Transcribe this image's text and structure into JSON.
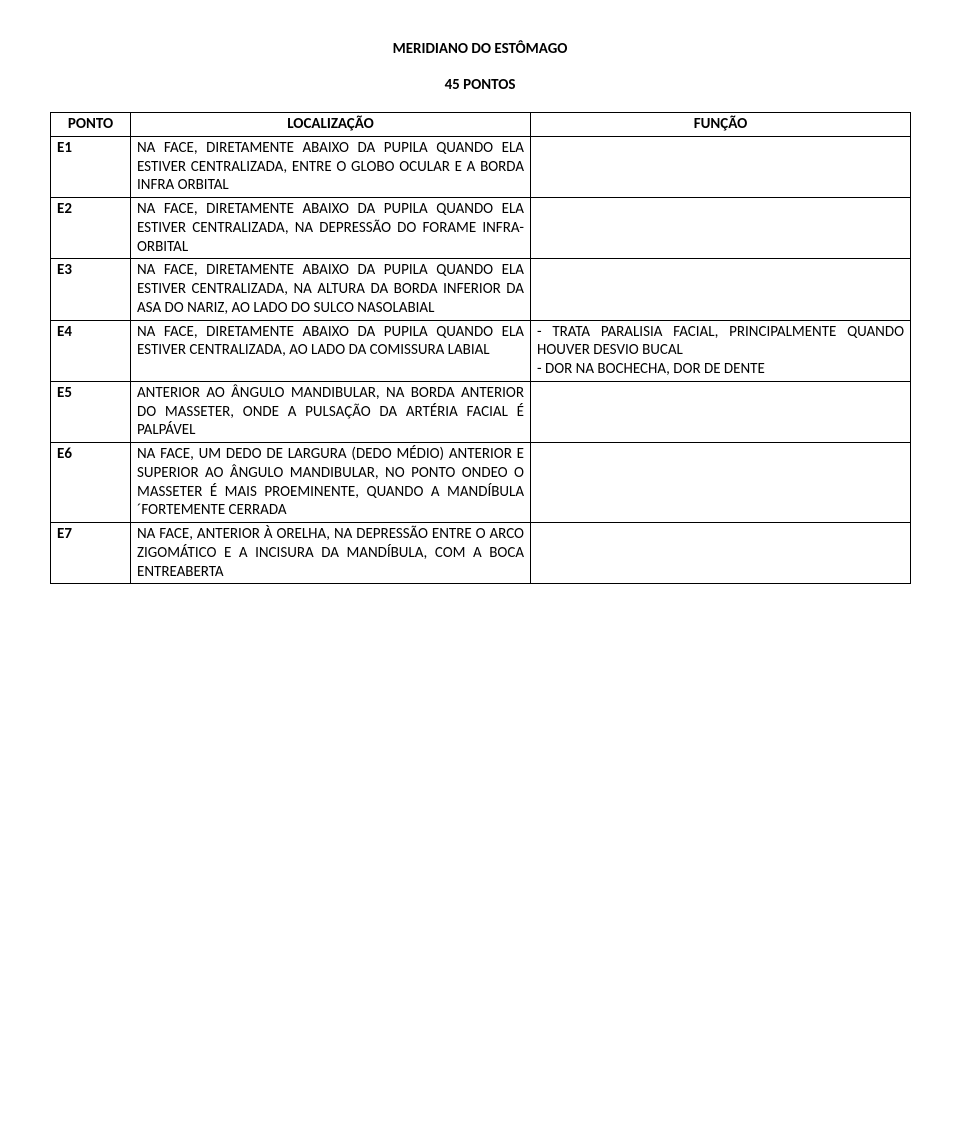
{
  "title": "MERIDIANO DO ESTÔMAGO",
  "subtitle": "45 PONTOS",
  "table": {
    "columns": [
      "PONTO",
      "LOCALIZAÇÃO",
      "FUNÇÃO"
    ],
    "rows": [
      {
        "ponto": "E1",
        "loc": "NA FACE, DIRETAMENTE ABAIXO DA PUPILA QUANDO ELA ESTIVER CENTRALIZADA, ENTRE O GLOBO OCULAR E A BORDA INFRA ORBITAL",
        "func": ""
      },
      {
        "ponto": "E2",
        "loc": "NA FACE, DIRETAMENTE ABAIXO DA PUPILA QUANDO ELA ESTIVER CENTRALIZADA, NA DEPRESSÃO DO FORAME INFRA-ORBITAL",
        "func": ""
      },
      {
        "ponto": "E3",
        "loc": "NA FACE, DIRETAMENTE ABAIXO DA PUPILA QUANDO ELA ESTIVER CENTRALIZADA, NA ALTURA DA BORDA INFERIOR DA ASA DO NARIZ, AO LADO DO SULCO NASOLABIAL",
        "func": ""
      },
      {
        "ponto": "E4",
        "loc": "NA FACE, DIRETAMENTE ABAIXO DA PUPILA QUANDO ELA ESTIVER CENTRALIZADA, AO LADO DA COMISSURA LABIAL",
        "func": "- TRATA PARALISIA FACIAL, PRINCIPALMENTE QUANDO HOUVER DESVIO BUCAL\n- DOR NA BOCHECHA, DOR DE DENTE"
      },
      {
        "ponto": "E5",
        "loc": "ANTERIOR AO ÂNGULO MANDIBULAR, NA BORDA ANTERIOR DO MASSETER, ONDE A PULSAÇÃO DA ARTÉRIA FACIAL É PALPÁVEL",
        "func": ""
      },
      {
        "ponto": "E6",
        "loc": "NA FACE, UM DEDO DE LARGURA (DEDO MÉDIO) ANTERIOR E SUPERIOR AO ÂNGULO MANDIBULAR, NO PONTO ONDEO O MASSETER É MAIS PROEMINENTE, QUANDO A MANDÍBULA ´FORTEMENTE CERRADA",
        "func": ""
      },
      {
        "ponto": "E7",
        "loc": "NA FACE, ANTERIOR À ORELHA, NA DEPRESSÃO ENTRE O ARCO ZIGOMÁTICO E A INCISURA DA MANDÍBULA, COM A BOCA ENTREABERTA",
        "func": ""
      }
    ]
  }
}
